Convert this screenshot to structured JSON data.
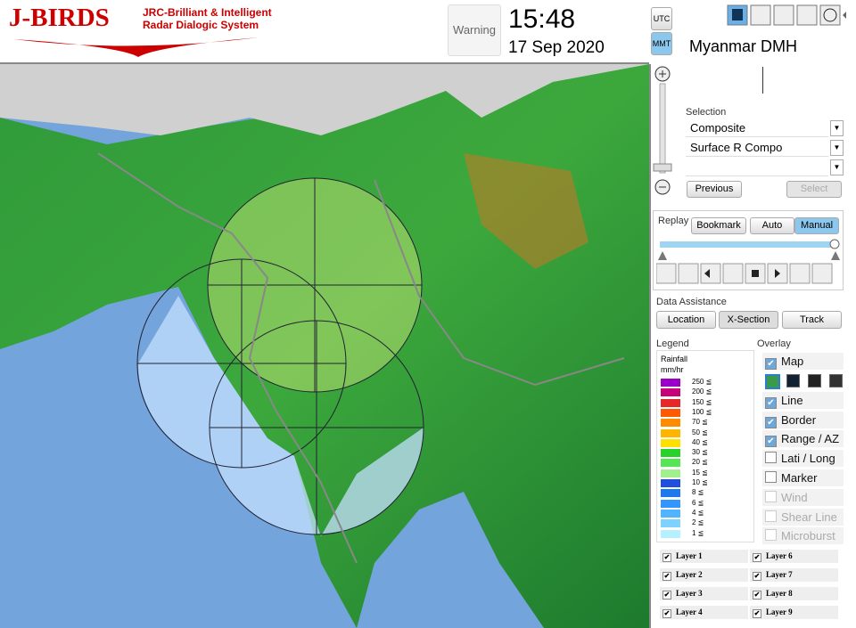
{
  "header": {
    "logo": "J-BIRDS",
    "tagline_1": "JRC-Brilliant & Intelligent",
    "tagline_2": "Radar Dialogic System",
    "warning": "Warning",
    "time": "15:48",
    "date": "17 Sep 2020",
    "utc": "UTC",
    "mmt": "MMT"
  },
  "panel": {
    "site": "Myanmar DMH",
    "selection_label": "Selection",
    "selection_1": "Composite",
    "selection_2": "Surface R Compo",
    "previous": "Previous",
    "select": "Select",
    "replay_label": "Replay",
    "bookmark": "Bookmark",
    "auto": "Auto",
    "manual": "Manual",
    "data_assistance_label": "Data Assistance",
    "location": "Location",
    "x_section": "X-Section",
    "track": "Track",
    "legend_label": "Legend",
    "overlay_label": "Overlay",
    "legend_title_1": "Rainfall",
    "legend_title_2": "mm/hr",
    "legend": [
      {
        "label": "250 ≦",
        "color": "#9a00c8"
      },
      {
        "label": "200 ≦",
        "color": "#c8007a"
      },
      {
        "label": "150 ≦",
        "color": "#e62828"
      },
      {
        "label": "100 ≦",
        "color": "#ff5a00"
      },
      {
        "label": "70 ≦",
        "color": "#ff8c00"
      },
      {
        "label": "50 ≦",
        "color": "#ffb400"
      },
      {
        "label": "40 ≦",
        "color": "#ffe000"
      },
      {
        "label": "30 ≦",
        "color": "#28d228"
      },
      {
        "label": "20 ≦",
        "color": "#55e655"
      },
      {
        "label": "15 ≦",
        "color": "#a0f08c"
      },
      {
        "label": "10 ≦",
        "color": "#1e50dc"
      },
      {
        "label": "8 ≦",
        "color": "#1e78f0"
      },
      {
        "label": "6 ≦",
        "color": "#3296ff"
      },
      {
        "label": "4 ≦",
        "color": "#50b4ff"
      },
      {
        "label": "2 ≦",
        "color": "#7dd2ff"
      },
      {
        "label": "1 ≦",
        "color": "#b4f0ff"
      }
    ],
    "overlay": [
      {
        "label": "Map",
        "checked": true,
        "enabled": true
      },
      {
        "label": "Line",
        "checked": true,
        "enabled": true
      },
      {
        "label": "Border",
        "checked": true,
        "enabled": true
      },
      {
        "label": "Range / AZ",
        "checked": true,
        "enabled": true
      },
      {
        "label": "Lati / Long",
        "checked": false,
        "enabled": true
      },
      {
        "label": "Marker",
        "checked": false,
        "enabled": true
      },
      {
        "label": "Wind",
        "checked": false,
        "enabled": false
      },
      {
        "label": "Shear Line",
        "checked": false,
        "enabled": false
      },
      {
        "label": "Microburst",
        "checked": false,
        "enabled": false
      }
    ],
    "layers": [
      "Layer 1",
      "Layer 2",
      "Layer 3",
      "Layer 4",
      "Layer 6",
      "Layer 7",
      "Layer 8",
      "Layer 9"
    ]
  }
}
